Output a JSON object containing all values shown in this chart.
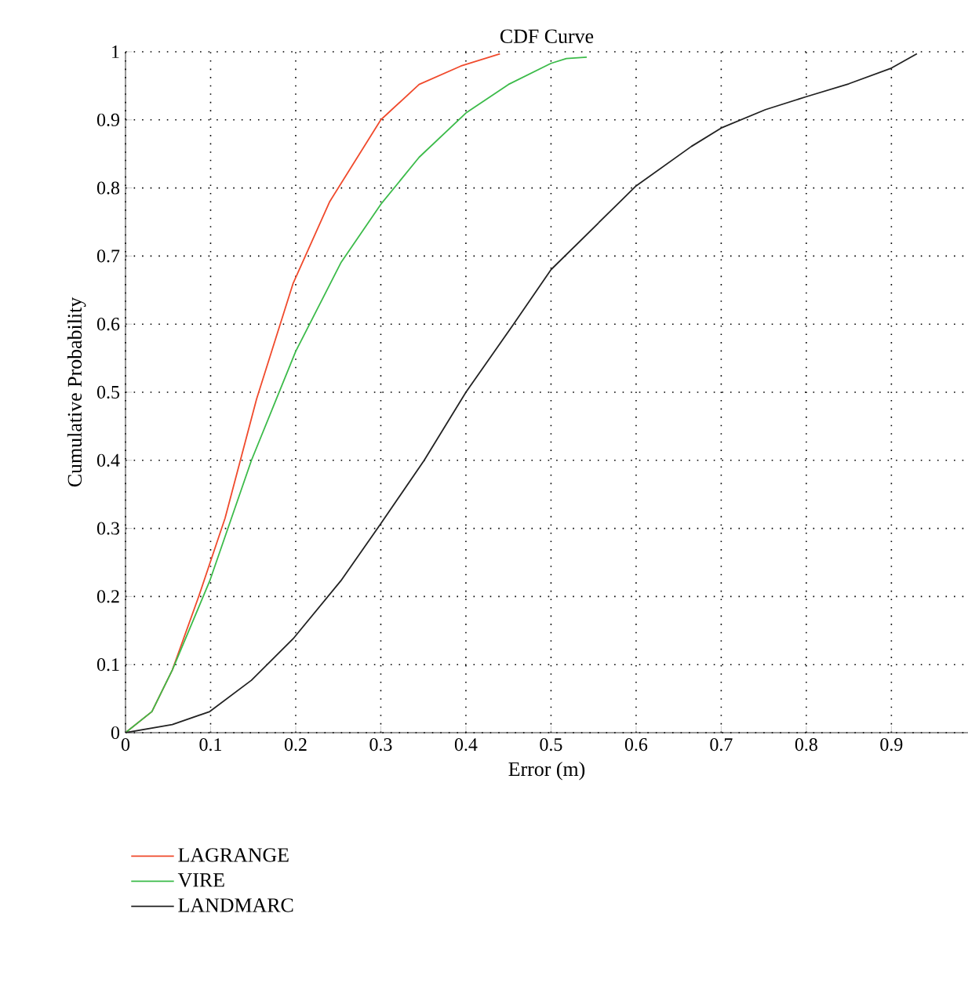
{
  "chart_data": {
    "type": "line",
    "title": "CDF Curve",
    "xlabel": "Error (m)",
    "ylabel": "Cumulative Probability",
    "xlim": [
      0,
      0.99
    ],
    "ylim": [
      0,
      1
    ],
    "xticks": [
      0,
      0.1,
      0.2,
      0.3,
      0.4,
      0.5,
      0.6,
      0.7,
      0.8,
      0.9
    ],
    "yticks": [
      0,
      0.1,
      0.2,
      0.3,
      0.4,
      0.5,
      0.6,
      0.7,
      0.8,
      0.9,
      1
    ],
    "grid": true,
    "legend": "bottom left",
    "marker": "none",
    "line_style": "solid",
    "series": [
      {
        "name": "LAGRANGE",
        "color": "#f04a2c",
        "x": [
          0,
          0.031,
          0.055,
          0.086,
          0.117,
          0.154,
          0.197,
          0.24,
          0.3,
          0.345,
          0.394,
          0.44
        ],
        "values": [
          0,
          0.031,
          0.092,
          0.2,
          0.315,
          0.49,
          0.66,
          0.78,
          0.9,
          0.952,
          0.979,
          0.997
        ]
      },
      {
        "name": "VIRE",
        "color": "#3cbb4a",
        "x": [
          0,
          0.031,
          0.055,
          0.099,
          0.148,
          0.2,
          0.253,
          0.3,
          0.345,
          0.4,
          0.45,
          0.5,
          0.518,
          0.542
        ],
        "values": [
          0,
          0.031,
          0.092,
          0.223,
          0.4,
          0.56,
          0.69,
          0.776,
          0.845,
          0.91,
          0.952,
          0.983,
          0.99,
          0.992
        ]
      },
      {
        "name": "LANDMARC",
        "color": "#222222",
        "x": [
          0,
          0.055,
          0.099,
          0.148,
          0.197,
          0.253,
          0.3,
          0.351,
          0.4,
          0.456,
          0.5,
          0.6,
          0.665,
          0.7,
          0.752,
          0.8,
          0.85,
          0.9,
          0.93
        ],
        "values": [
          0,
          0.012,
          0.031,
          0.077,
          0.138,
          0.223,
          0.307,
          0.4,
          0.5,
          0.6,
          0.68,
          0.803,
          0.861,
          0.888,
          0.915,
          0.934,
          0.953,
          0.976,
          0.997
        ]
      }
    ]
  }
}
